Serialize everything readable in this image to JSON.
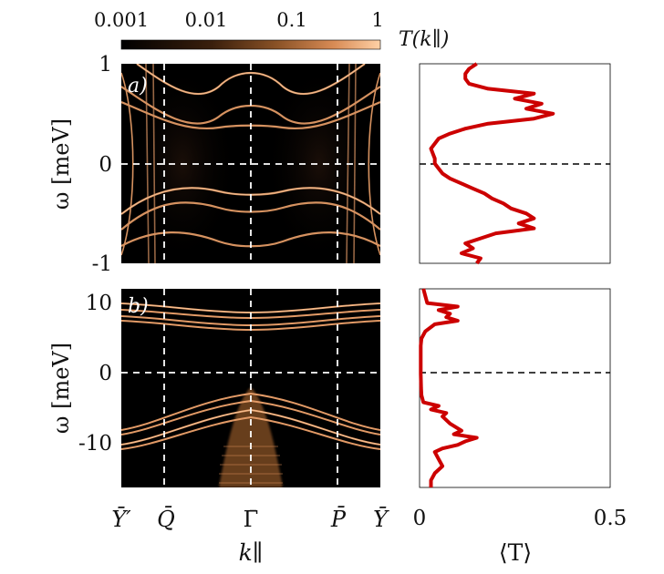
{
  "colorbar": {
    "label": "T(k∥)",
    "ticks": [
      "0.001",
      "0.01",
      "0.1",
      "1"
    ],
    "colors": [
      "#000000",
      "#3a1f0c",
      "#8a5226",
      "#d88b55",
      "#ffd1a6"
    ]
  },
  "x_axis": {
    "label": "k∥",
    "ticks": [
      "Ȳ′",
      "Q̄",
      "Γ̄",
      "P̄",
      "Ȳ"
    ]
  },
  "right_axis": {
    "label": "⟨T⟩",
    "ticks": [
      "0",
      "0.5"
    ],
    "line_color": "#cc0000"
  },
  "chart_data": [
    {
      "type": "heatmap",
      "panel_label": "a)",
      "xlabel": "k∥",
      "ylabel": "ω [meV]",
      "ylim": [
        -1,
        1
      ],
      "yticks": [
        "1",
        "0",
        "-1"
      ],
      "xticks": [
        "Ȳ′",
        "Q̄",
        "Γ̄",
        "P̄",
        "Ȳ"
      ],
      "colorscale": "log",
      "zlim": [
        0.001,
        1
      ]
    },
    {
      "type": "line",
      "xlabel": "⟨T⟩",
      "xlim": [
        0,
        0.5
      ],
      "ylim": [
        -1,
        1
      ],
      "series": [
        {
          "name": "⟨T⟩ panel a",
          "omega": [
            1.0,
            0.95,
            0.9,
            0.85,
            0.8,
            0.75,
            0.7,
            0.65,
            0.6,
            0.55,
            0.5,
            0.45,
            0.4,
            0.35,
            0.3,
            0.25,
            0.2,
            0.15,
            0.1,
            0.05,
            0.0,
            -0.05,
            -0.1,
            -0.15,
            -0.2,
            -0.25,
            -0.3,
            -0.35,
            -0.4,
            -0.45,
            -0.5,
            -0.55,
            -0.6,
            -0.65,
            -0.7,
            -0.75,
            -0.8,
            -0.85,
            -0.9,
            -0.95,
            -1.0
          ],
          "values": [
            0.15,
            0.13,
            0.12,
            0.12,
            0.13,
            0.18,
            0.3,
            0.25,
            0.32,
            0.28,
            0.35,
            0.3,
            0.18,
            0.12,
            0.08,
            0.05,
            0.04,
            0.03,
            0.035,
            0.04,
            0.04,
            0.05,
            0.06,
            0.08,
            0.11,
            0.14,
            0.17,
            0.19,
            0.22,
            0.24,
            0.28,
            0.3,
            0.26,
            0.3,
            0.2,
            0.16,
            0.12,
            0.14,
            0.11,
            0.16,
            0.15
          ]
        }
      ]
    },
    {
      "type": "heatmap",
      "panel_label": "b)",
      "xlabel": "k∥",
      "ylabel": "ω [meV]",
      "ylim": [
        -16,
        12
      ],
      "yticks": [
        "10",
        "0",
        "-10"
      ],
      "xticks": [
        "Ȳ′",
        "Q̄",
        "Γ̄",
        "P̄",
        "Ȳ"
      ],
      "colorscale": "log",
      "zlim": [
        0.001,
        1
      ]
    },
    {
      "type": "line",
      "xlabel": "⟨T⟩",
      "xlim": [
        0,
        0.5
      ],
      "ylim": [
        -16,
        12
      ],
      "series": [
        {
          "name": "⟨T⟩ panel b",
          "omega": [
            12,
            11,
            10,
            9.5,
            9,
            8.5,
            8,
            7.5,
            7,
            6,
            5,
            4,
            2,
            0,
            -2,
            -3,
            -4,
            -4.5,
            -5,
            -5.5,
            -6,
            -7,
            -8,
            -8.5,
            -9,
            -9.5,
            -10,
            -10.5,
            -11,
            -12,
            -13,
            -14,
            -15,
            -16
          ],
          "values": [
            0.01,
            0.015,
            0.02,
            0.1,
            0.05,
            0.08,
            0.07,
            0.1,
            0.04,
            0.015,
            0.005,
            0.003,
            0.003,
            0.003,
            0.004,
            0.005,
            0.01,
            0.05,
            0.03,
            0.07,
            0.06,
            0.08,
            0.11,
            0.09,
            0.15,
            0.12,
            0.1,
            0.06,
            0.04,
            0.05,
            0.06,
            0.04,
            0.03,
            0.03
          ]
        }
      ]
    }
  ]
}
